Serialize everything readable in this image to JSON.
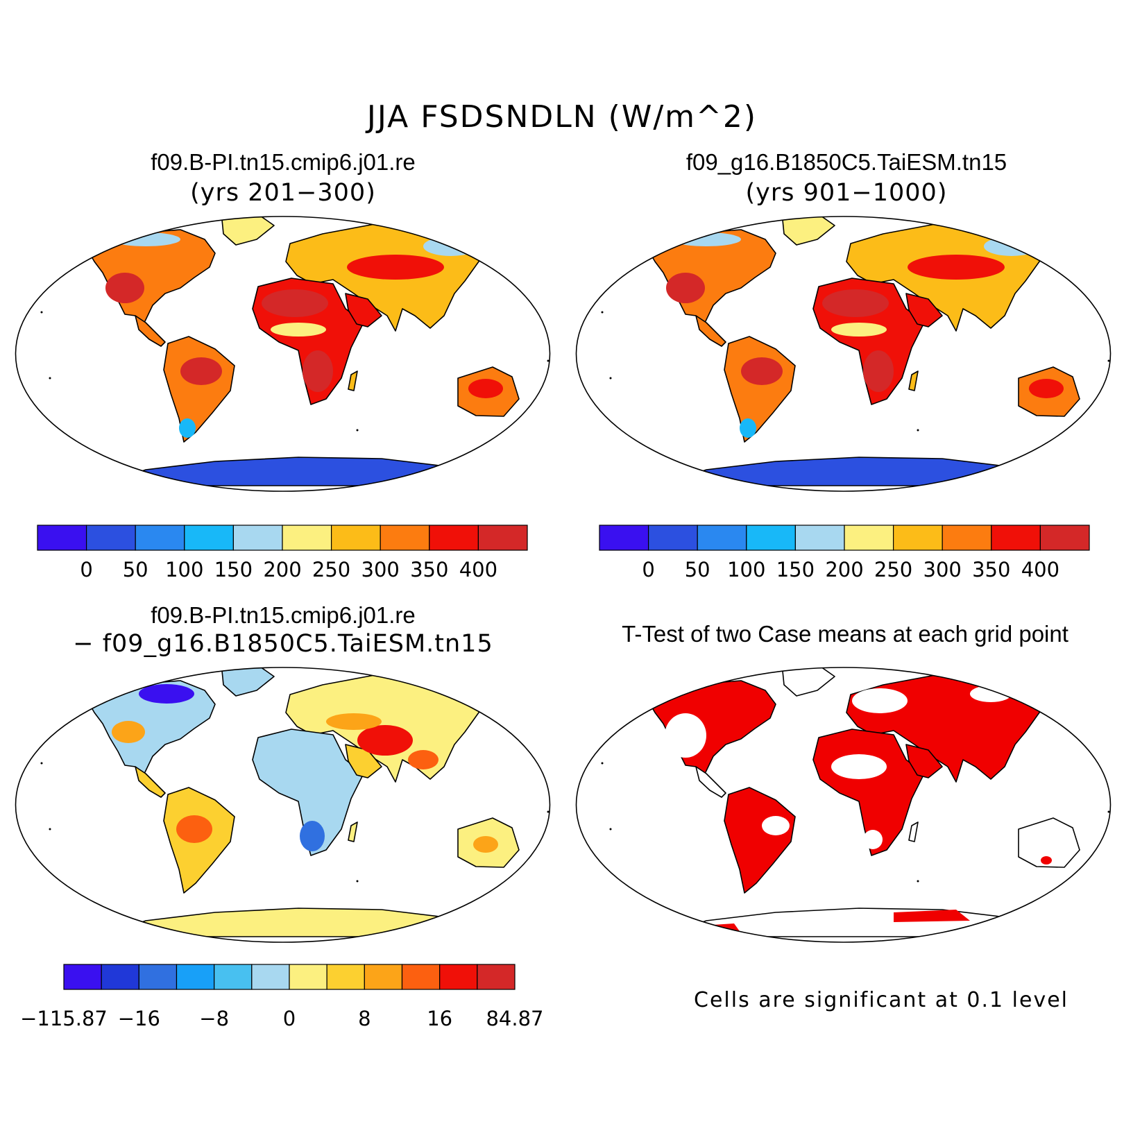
{
  "title": "JJA FSDSNDLN (W/m^2)",
  "panels": {
    "top_left": {
      "title": "f09.B-PI.tn15.cmip6.j01.re",
      "subtitle": "(yrs 201−300)"
    },
    "top_right": {
      "title": "f09_g16.B1850C5.TaiESM.tn15",
      "subtitle": "(yrs 901−1000)"
    },
    "bottom_left": {
      "title": "f09.B-PI.tn15.cmip6.j01.re",
      "subtitle": "− f09_g16.B1850C5.TaiESM.tn15"
    },
    "bottom_right": {
      "title": "T-Test of two Case means at each grid point",
      "note": "Cells are significant at 0.1 level"
    }
  },
  "colorbars": {
    "absolute": {
      "colors": [
        "#3a10f0",
        "#2c50e0",
        "#2a88f0",
        "#18b8f8",
        "#a8d8f0",
        "#fcf080",
        "#fcbc18",
        "#fc7c10",
        "#f01008",
        "#d42828"
      ],
      "labels": [
        "0",
        "50",
        "100",
        "150",
        "200",
        "250",
        "300",
        "350",
        "400"
      ]
    },
    "difference": {
      "colors": [
        "#3a10f0",
        "#2038d8",
        "#3070e0",
        "#18a0f8",
        "#48c0f0",
        "#a8d8f0",
        "#fcf080",
        "#fcd030",
        "#fca418",
        "#fc6010",
        "#f01008",
        "#d42828"
      ],
      "labels": [
        "−115.87",
        "−16",
        "−8",
        "0",
        "8",
        "16",
        "84.87"
      ]
    }
  },
  "map_colors": {
    "significant": "#f00000",
    "land_outline": "#000000"
  }
}
